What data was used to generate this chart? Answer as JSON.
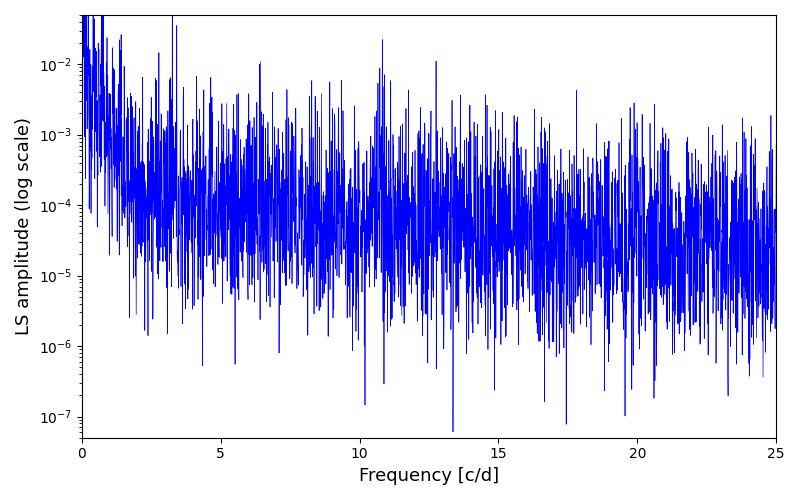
{
  "xlabel": "Frequency [c/d]",
  "ylabel": "LS amplitude (log scale)",
  "xlim": [
    0,
    25
  ],
  "ylim": [
    5e-08,
    0.05
  ],
  "line_color": "#0000ff",
  "line_width": 0.5,
  "background_color": "#ffffff",
  "xlabel_fontsize": 13,
  "ylabel_fontsize": 13,
  "seed": 12345,
  "n_points": 3000,
  "freq_max": 25.0,
  "base_amplitude": 0.00015,
  "decay_rate": 0.08,
  "noise_sigma": 1.8,
  "low_freq_boost": 80.0,
  "low_freq_decay": 2.5
}
